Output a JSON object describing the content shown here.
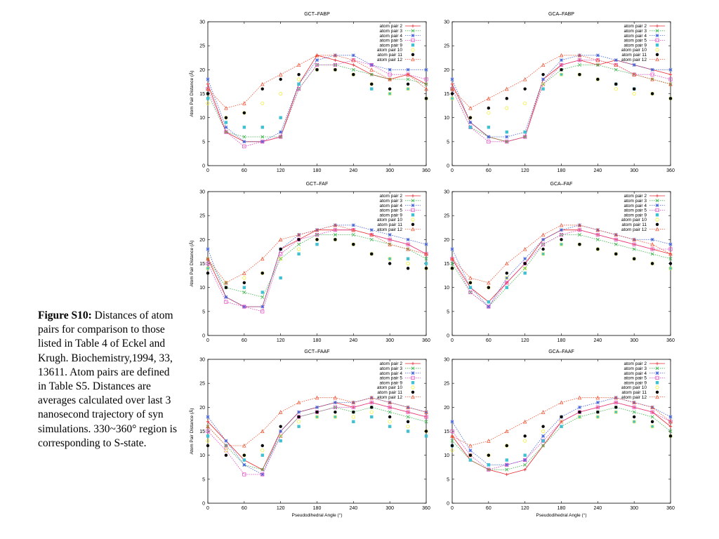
{
  "caption": {
    "label": "Figure S10:",
    "text": " Distances of atom pairs for comparison to those listed in Table 4 of Eckel and Krugh. Biochemistry,1994, 33, 13611. Atom pairs are defined in Table S5. Distances are averages calculated over last 3 nanosecond trajectory of syn simulations. 330~360° region is corresponding to S-state."
  },
  "series_styles": [
    {
      "name": "atom pair 2",
      "color": "#e8262e",
      "marker": "plus",
      "line": "solid"
    },
    {
      "name": "atom pair 3",
      "color": "#3cb44b",
      "marker": "x",
      "line": "dotted"
    },
    {
      "name": "atom pair 4",
      "color": "#4363d8",
      "marker": "star",
      "line": "dotted"
    },
    {
      "name": "atom pair 5",
      "color": "#e040c0",
      "marker": "square-open",
      "line": "dotted"
    },
    {
      "name": "atom pair 9",
      "color": "#40c0d0",
      "marker": "square",
      "line": "none"
    },
    {
      "name": "atom pair 10",
      "color": "#f0f040",
      "marker": "circle-open",
      "line": "none"
    },
    {
      "name": "atom pair 11",
      "color": "#000000",
      "marker": "circle",
      "line": "none"
    },
    {
      "name": "atom pair 12",
      "color": "#f05030",
      "marker": "triangle-open",
      "line": "dotted"
    }
  ],
  "chart_data": [
    {
      "type": "line",
      "title": "GCT–FABP",
      "xlabel": "",
      "ylabel": "Atom Pair Distance (Å)",
      "xlim": [
        0,
        360
      ],
      "ylim": [
        0,
        30
      ],
      "xticks": [
        0,
        60,
        120,
        180,
        240,
        300,
        360
      ],
      "yticks": [
        0,
        5,
        10,
        15,
        20,
        25,
        30
      ],
      "x": [
        0,
        30,
        60,
        90,
        120,
        150,
        180,
        210,
        240,
        270,
        300,
        330,
        360
      ],
      "legend": "top-right",
      "grid": false,
      "series": [
        {
          "name": "atom pair 2",
          "values": [
            17,
            7,
            5,
            5,
            6,
            17,
            23,
            22,
            21,
            19,
            18,
            19,
            17
          ]
        },
        {
          "name": "atom pair 3",
          "values": [
            15,
            7,
            6,
            6,
            6,
            16,
            21,
            21,
            20,
            19,
            18,
            18,
            17
          ]
        },
        {
          "name": "atom pair 4",
          "values": [
            18,
            8,
            5,
            5,
            7,
            17,
            22,
            23,
            23,
            21,
            20,
            20,
            20
          ]
        },
        {
          "name": "atom pair 5",
          "values": [
            16,
            7,
            4,
            5,
            6,
            16,
            21,
            21,
            22,
            21,
            19,
            19,
            18
          ]
        },
        {
          "name": "atom pair 9",
          "values": [
            14,
            9,
            8,
            8,
            10,
            17,
            20,
            20,
            19,
            16,
            15,
            16,
            14
          ]
        },
        {
          "name": "atom pair 10",
          "values": [
            13,
            10,
            11,
            13,
            15,
            18,
            20,
            20,
            19,
            17,
            15,
            16,
            14
          ]
        },
        {
          "name": "atom pair 11",
          "values": [
            15,
            10,
            11,
            16,
            18,
            19,
            20,
            20,
            19,
            17,
            16,
            17,
            14
          ]
        },
        {
          "name": "atom pair 12",
          "values": [
            16,
            12,
            13,
            17,
            19,
            21,
            23,
            23,
            22,
            20,
            18,
            19,
            16
          ]
        }
      ]
    },
    {
      "type": "line",
      "title": "GCA–FABP",
      "xlabel": "",
      "ylabel": "",
      "xlim": [
        0,
        360
      ],
      "ylim": [
        0,
        30
      ],
      "xticks": [
        0,
        60,
        120,
        180,
        240,
        300,
        360
      ],
      "yticks": [
        0,
        5,
        10,
        15,
        20,
        25,
        30
      ],
      "x": [
        0,
        30,
        60,
        90,
        120,
        150,
        180,
        210,
        240,
        270,
        300,
        330,
        360
      ],
      "legend": "top-right",
      "grid": false,
      "series": [
        {
          "name": "atom pair 2",
          "values": [
            17,
            9,
            6,
            5,
            6,
            18,
            21,
            22,
            21,
            22,
            21,
            20,
            19
          ]
        },
        {
          "name": "atom pair 3",
          "values": [
            16,
            8,
            6,
            5,
            6,
            17,
            20,
            21,
            21,
            20,
            19,
            18,
            17
          ]
        },
        {
          "name": "atom pair 4",
          "values": [
            18,
            9,
            6,
            6,
            7,
            18,
            22,
            23,
            23,
            22,
            21,
            20,
            20
          ]
        },
        {
          "name": "atom pair 5",
          "values": [
            16,
            8,
            5,
            5,
            6,
            17,
            21,
            22,
            22,
            21,
            19,
            19,
            18
          ]
        },
        {
          "name": "atom pair 9",
          "values": [
            14,
            8,
            8,
            7,
            7,
            16,
            19,
            19,
            18,
            17,
            16,
            15,
            14
          ]
        },
        {
          "name": "atom pair 10",
          "values": [
            14,
            10,
            11,
            12,
            13,
            17,
            19,
            19,
            18,
            16,
            15,
            15,
            14
          ]
        },
        {
          "name": "atom pair 11",
          "values": [
            15,
            10,
            12,
            14,
            16,
            19,
            20,
            19,
            18,
            17,
            16,
            15,
            14
          ]
        },
        {
          "name": "atom pair 12",
          "values": [
            16,
            12,
            14,
            16,
            18,
            21,
            23,
            23,
            22,
            21,
            19,
            18,
            17
          ]
        }
      ]
    },
    {
      "type": "line",
      "title": "GCT–FAF",
      "xlabel": "",
      "ylabel": "Atom Pair Distance (Å)",
      "xlim": [
        0,
        360
      ],
      "ylim": [
        0,
        30
      ],
      "xticks": [
        0,
        60,
        120,
        180,
        240,
        300,
        360
      ],
      "yticks": [
        0,
        5,
        10,
        15,
        20,
        25,
        30
      ],
      "x": [
        0,
        30,
        60,
        90,
        120,
        150,
        180,
        210,
        240,
        270,
        300,
        330,
        360
      ],
      "legend": "top-right",
      "grid": false,
      "series": [
        {
          "name": "atom pair 2",
          "values": [
            16,
            8,
            6,
            6,
            18,
            20,
            22,
            22,
            22,
            21,
            20,
            19,
            17
          ]
        },
        {
          "name": "atom pair 3",
          "values": [
            16,
            10,
            9,
            8,
            16,
            19,
            21,
            21,
            21,
            20,
            19,
            18,
            16
          ]
        },
        {
          "name": "atom pair 4",
          "values": [
            18,
            8,
            6,
            6,
            18,
            21,
            22,
            23,
            23,
            22,
            21,
            20,
            19
          ]
        },
        {
          "name": "atom pair 5",
          "values": [
            15,
            7,
            6,
            5,
            17,
            20,
            21,
            22,
            22,
            21,
            20,
            19,
            17
          ]
        },
        {
          "name": "atom pair 9",
          "values": [
            14,
            11,
            10,
            9,
            12,
            17,
            19,
            20,
            19,
            17,
            16,
            16,
            15
          ]
        },
        {
          "name": "atom pair 10",
          "values": [
            14,
            11,
            12,
            13,
            16,
            18,
            20,
            20,
            19,
            17,
            16,
            15,
            14
          ]
        },
        {
          "name": "atom pair 11",
          "values": [
            13,
            10,
            11,
            13,
            18,
            20,
            20,
            20,
            19,
            17,
            15,
            14,
            14
          ]
        },
        {
          "name": "atom pair 12",
          "values": [
            16,
            11,
            13,
            16,
            20,
            21,
            22,
            23,
            22,
            21,
            19,
            18,
            17
          ]
        }
      ]
    },
    {
      "type": "line",
      "title": "GCA–FAF",
      "xlabel": "",
      "ylabel": "",
      "xlim": [
        0,
        360
      ],
      "ylim": [
        0,
        30
      ],
      "xticks": [
        0,
        60,
        120,
        180,
        240,
        300,
        360
      ],
      "yticks": [
        0,
        5,
        10,
        15,
        20,
        25,
        30
      ],
      "x": [
        0,
        30,
        60,
        90,
        120,
        150,
        180,
        210,
        240,
        270,
        300,
        330,
        360
      ],
      "legend": "top-right",
      "grid": false,
      "series": [
        {
          "name": "atom pair 2",
          "values": [
            16,
            10,
            7,
            11,
            15,
            20,
            22,
            22,
            21,
            20,
            19,
            18,
            17
          ]
        },
        {
          "name": "atom pair 3",
          "values": [
            15,
            9,
            6,
            10,
            14,
            19,
            21,
            21,
            20,
            19,
            18,
            17,
            16
          ]
        },
        {
          "name": "atom pair 4",
          "values": [
            18,
            10,
            6,
            12,
            16,
            20,
            22,
            23,
            22,
            21,
            20,
            20,
            19
          ]
        },
        {
          "name": "atom pair 5",
          "values": [
            16,
            9,
            6,
            11,
            15,
            19,
            21,
            22,
            21,
            20,
            19,
            18,
            18
          ]
        },
        {
          "name": "atom pair 9",
          "values": [
            14,
            10,
            7,
            10,
            13,
            17,
            19,
            19,
            18,
            17,
            16,
            15,
            14
          ]
        },
        {
          "name": "atom pair 10",
          "values": [
            14,
            11,
            10,
            12,
            14,
            17,
            19,
            19,
            18,
            17,
            16,
            15,
            14
          ]
        },
        {
          "name": "atom pair 11",
          "values": [
            14,
            11,
            10,
            13,
            15,
            18,
            20,
            19,
            18,
            17,
            16,
            15,
            15
          ]
        },
        {
          "name": "atom pair 12",
          "values": [
            16,
            12,
            11,
            15,
            18,
            21,
            23,
            23,
            22,
            21,
            20,
            19,
            17
          ]
        }
      ]
    },
    {
      "type": "line",
      "title": "GCT–FAAF",
      "xlabel": "Pseudodihedral Angle (°)",
      "ylabel": "Atom Pair Distance (Å)",
      "xlim": [
        0,
        360
      ],
      "ylim": [
        0,
        30
      ],
      "xticks": [
        0,
        60,
        120,
        180,
        240,
        300,
        360
      ],
      "yticks": [
        0,
        5,
        10,
        15,
        20,
        25,
        30
      ],
      "x": [
        0,
        30,
        60,
        90,
        120,
        150,
        180,
        210,
        240,
        270,
        300,
        330,
        360
      ],
      "legend": "top-right",
      "grid": false,
      "series": [
        {
          "name": "atom pair 2",
          "values": [
            17,
            13,
            9,
            7,
            15,
            19,
            20,
            21,
            20,
            21,
            20,
            19,
            18
          ]
        },
        {
          "name": "atom pair 3",
          "values": [
            16,
            12,
            8,
            7,
            14,
            18,
            19,
            20,
            19,
            20,
            19,
            18,
            17
          ]
        },
        {
          "name": "atom pair 4",
          "values": [
            18,
            13,
            8,
            6,
            15,
            19,
            20,
            21,
            21,
            22,
            21,
            20,
            19
          ]
        },
        {
          "name": "atom pair 5",
          "values": [
            15,
            11,
            6,
            6,
            14,
            18,
            19,
            20,
            20,
            21,
            20,
            19,
            18
          ]
        },
        {
          "name": "atom pair 9",
          "values": [
            14,
            12,
            9,
            10,
            13,
            16,
            18,
            18,
            17,
            18,
            16,
            15,
            14
          ]
        },
        {
          "name": "atom pair 10",
          "values": [
            13,
            11,
            10,
            11,
            14,
            17,
            18,
            18,
            18,
            19,
            17,
            16,
            15
          ]
        },
        {
          "name": "atom pair 11",
          "values": [
            12,
            10,
            10,
            12,
            16,
            18,
            19,
            19,
            19,
            20,
            18,
            17,
            15
          ]
        },
        {
          "name": "atom pair 12",
          "values": [
            16,
            12,
            12,
            15,
            19,
            21,
            22,
            22,
            21,
            22,
            21,
            20,
            19
          ]
        }
      ]
    },
    {
      "type": "line",
      "title": "GCA–FAAF",
      "xlabel": "Pseudodihedral Angle (°)",
      "ylabel": "",
      "xlim": [
        0,
        360
      ],
      "ylim": [
        0,
        30
      ],
      "xticks": [
        0,
        60,
        120,
        180,
        240,
        300,
        360
      ],
      "yticks": [
        0,
        5,
        10,
        15,
        20,
        25,
        30
      ],
      "x": [
        0,
        30,
        60,
        90,
        120,
        150,
        180,
        210,
        240,
        270,
        300,
        330,
        360
      ],
      "legend": "top-right",
      "grid": false,
      "series": [
        {
          "name": "atom pair 2",
          "values": [
            14,
            9,
            7,
            6,
            7,
            12,
            17,
            19,
            20,
            21,
            20,
            19,
            16
          ]
        },
        {
          "name": "atom pair 3",
          "values": [
            13,
            9,
            7,
            7,
            8,
            12,
            16,
            18,
            19,
            20,
            19,
            18,
            15
          ]
        },
        {
          "name": "atom pair 4",
          "values": [
            17,
            11,
            8,
            8,
            9,
            14,
            18,
            20,
            21,
            22,
            21,
            20,
            18
          ]
        },
        {
          "name": "atom pair 5",
          "values": [
            15,
            10,
            7,
            8,
            9,
            13,
            17,
            19,
            20,
            21,
            20,
            19,
            17
          ]
        },
        {
          "name": "atom pair 9",
          "values": [
            12,
            9,
            8,
            9,
            10,
            13,
            16,
            18,
            18,
            19,
            17,
            16,
            14
          ]
        },
        {
          "name": "atom pair 10",
          "values": [
            11,
            10,
            10,
            12,
            13,
            15,
            17,
            18,
            18,
            19,
            17,
            16,
            14
          ]
        },
        {
          "name": "atom pair 11",
          "values": [
            12,
            10,
            10,
            12,
            14,
            16,
            18,
            19,
            19,
            20,
            18,
            17,
            14
          ]
        },
        {
          "name": "atom pair 12",
          "values": [
            14,
            12,
            13,
            15,
            17,
            19,
            21,
            22,
            22,
            22,
            21,
            20,
            17
          ]
        }
      ]
    }
  ]
}
